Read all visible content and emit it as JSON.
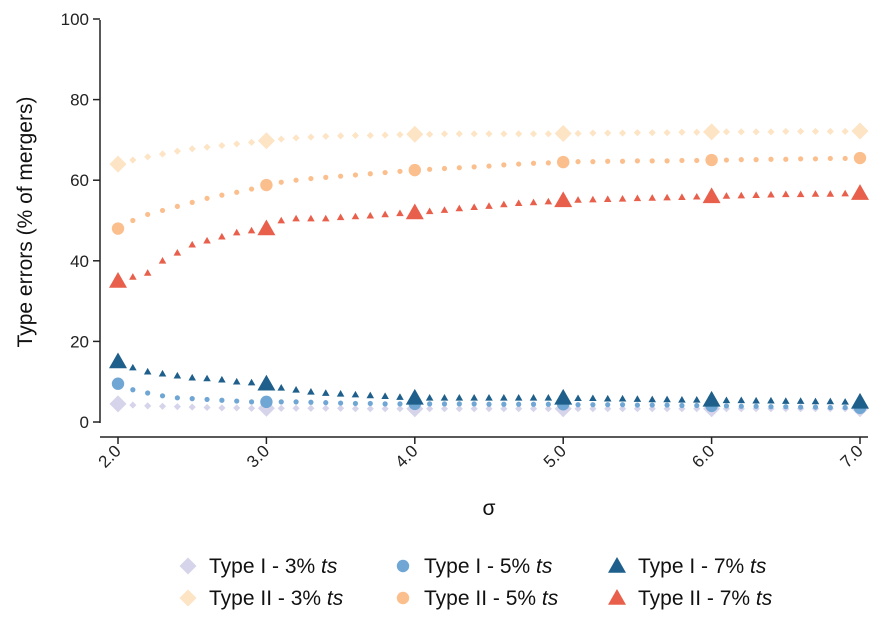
{
  "chart_data": {
    "type": "line",
    "xlabel": "σ",
    "ylabel": "Type errors (% of mergers)",
    "xlim": [
      2.0,
      7.0
    ],
    "ylim": [
      0,
      100
    ],
    "x_ticks": [
      2.0,
      3.0,
      4.0,
      5.0,
      6.0,
      7.0
    ],
    "x_tick_labels": [
      "2.0",
      "3.0",
      "4.0",
      "5.0",
      "6.0",
      "7.0"
    ],
    "y_ticks": [
      0,
      20,
      40,
      60,
      80,
      100
    ],
    "y_tick_labels": [
      "0",
      "20",
      "40",
      "60",
      "80",
      "100"
    ],
    "grid": false,
    "legend_position": "bottom",
    "series": [
      {
        "name": "Type I - 3% ts",
        "label_main": "Type I  - 3% ",
        "label_italic": "ts",
        "marker": "diamond",
        "color": "#d6d4ea",
        "x": [
          2.0,
          2.1,
          2.2,
          2.3,
          2.4,
          2.5,
          2.6,
          2.7,
          2.8,
          2.9,
          3.0,
          3.1,
          3.2,
          3.3,
          3.4,
          3.5,
          3.6,
          3.7,
          3.8,
          3.9,
          4.0,
          4.1,
          4.2,
          4.3,
          4.4,
          4.5,
          4.6,
          4.7,
          4.8,
          4.9,
          5.0,
          5.1,
          5.2,
          5.3,
          5.4,
          5.5,
          5.6,
          5.7,
          5.8,
          5.9,
          6.0,
          6.1,
          6.2,
          6.3,
          6.4,
          6.5,
          6.6,
          6.7,
          6.8,
          6.9,
          7.0
        ],
        "y": [
          4.5,
          4.2,
          4.0,
          3.9,
          3.8,
          3.7,
          3.6,
          3.5,
          3.5,
          3.4,
          3.4,
          3.4,
          3.4,
          3.4,
          3.4,
          3.4,
          3.3,
          3.3,
          3.3,
          3.3,
          3.3,
          3.3,
          3.3,
          3.3,
          3.3,
          3.3,
          3.3,
          3.3,
          3.3,
          3.3,
          3.3,
          3.3,
          3.3,
          3.3,
          3.3,
          3.3,
          3.3,
          3.3,
          3.3,
          3.3,
          3.3,
          3.3,
          3.3,
          3.3,
          3.3,
          3.3,
          3.3,
          3.3,
          3.3,
          3.3,
          3.3
        ]
      },
      {
        "name": "Type I - 5% ts",
        "label_main": "Type I  - 5% ",
        "label_italic": "ts",
        "marker": "circle",
        "color": "#6fa6d4",
        "x": [
          2.0,
          2.1,
          2.2,
          2.3,
          2.4,
          2.5,
          2.6,
          2.7,
          2.8,
          2.9,
          3.0,
          3.1,
          3.2,
          3.3,
          3.4,
          3.5,
          3.6,
          3.7,
          3.8,
          3.9,
          4.0,
          4.1,
          4.2,
          4.3,
          4.4,
          4.5,
          4.6,
          4.7,
          4.8,
          4.9,
          5.0,
          5.1,
          5.2,
          5.3,
          5.4,
          5.5,
          5.6,
          5.7,
          5.8,
          5.9,
          6.0,
          6.1,
          6.2,
          6.3,
          6.4,
          6.5,
          6.6,
          6.7,
          6.8,
          6.9,
          7.0
        ],
        "y": [
          9.5,
          8.0,
          7.2,
          6.5,
          6.0,
          5.8,
          5.6,
          5.4,
          5.2,
          5.0,
          5.0,
          5.0,
          5.0,
          4.9,
          4.8,
          4.7,
          4.6,
          4.6,
          4.5,
          4.5,
          4.5,
          4.5,
          4.5,
          4.5,
          4.5,
          4.4,
          4.4,
          4.4,
          4.4,
          4.4,
          4.4,
          4.3,
          4.3,
          4.3,
          4.3,
          4.2,
          4.2,
          4.2,
          4.1,
          4.1,
          4.0,
          4.0,
          3.9,
          3.9,
          3.8,
          3.8,
          3.7,
          3.7,
          3.6,
          3.6,
          3.5
        ]
      },
      {
        "name": "Type I - 7% ts",
        "label_main": "Type I  - 7% ",
        "label_italic": "ts",
        "marker": "triangle",
        "color": "#1f5f8b",
        "x": [
          2.0,
          2.1,
          2.2,
          2.3,
          2.4,
          2.5,
          2.6,
          2.7,
          2.8,
          2.9,
          3.0,
          3.1,
          3.2,
          3.3,
          3.4,
          3.5,
          3.6,
          3.7,
          3.8,
          3.9,
          4.0,
          4.1,
          4.2,
          4.3,
          4.4,
          4.5,
          4.6,
          4.7,
          4.8,
          4.9,
          5.0,
          5.1,
          5.2,
          5.3,
          5.4,
          5.5,
          5.6,
          5.7,
          5.8,
          5.9,
          6.0,
          6.1,
          6.2,
          6.3,
          6.4,
          6.5,
          6.6,
          6.7,
          6.8,
          6.9,
          7.0
        ],
        "y": [
          15.0,
          13.5,
          12.5,
          12.0,
          11.5,
          11.0,
          10.8,
          10.5,
          10.0,
          9.8,
          9.5,
          8.5,
          8.0,
          7.5,
          7.2,
          7.0,
          6.8,
          6.6,
          6.4,
          6.2,
          6.0,
          6.0,
          6.0,
          6.0,
          6.0,
          6.0,
          6.0,
          6.0,
          6.0,
          6.0,
          6.0,
          5.9,
          5.9,
          5.8,
          5.8,
          5.7,
          5.6,
          5.6,
          5.5,
          5.5,
          5.5,
          5.4,
          5.4,
          5.3,
          5.3,
          5.2,
          5.2,
          5.1,
          5.1,
          5.0,
          5.0
        ]
      },
      {
        "name": "Type II - 3% ts",
        "label_main": "Type II - 3% ",
        "label_italic": "ts",
        "marker": "diamond",
        "color": "#fde4c4",
        "x": [
          2.0,
          2.1,
          2.2,
          2.3,
          2.4,
          2.5,
          2.6,
          2.7,
          2.8,
          2.9,
          3.0,
          3.1,
          3.2,
          3.3,
          3.4,
          3.5,
          3.6,
          3.7,
          3.8,
          3.9,
          4.0,
          4.1,
          4.2,
          4.3,
          4.4,
          4.5,
          4.6,
          4.7,
          4.8,
          4.9,
          5.0,
          5.1,
          5.2,
          5.3,
          5.4,
          5.5,
          5.6,
          5.7,
          5.8,
          5.9,
          6.0,
          6.1,
          6.2,
          6.3,
          6.4,
          6.5,
          6.6,
          6.7,
          6.8,
          6.9,
          7.0
        ],
        "y": [
          64.0,
          65.0,
          65.8,
          66.5,
          67.2,
          67.8,
          68.2,
          68.6,
          69.0,
          69.4,
          69.8,
          70.2,
          70.5,
          70.7,
          70.9,
          71.0,
          71.1,
          71.1,
          71.2,
          71.3,
          71.4,
          71.4,
          71.5,
          71.5,
          71.5,
          71.5,
          71.5,
          71.5,
          71.5,
          71.5,
          71.6,
          71.6,
          71.7,
          71.7,
          71.7,
          71.8,
          71.8,
          71.8,
          71.9,
          71.9,
          72.0,
          72.0,
          72.0,
          72.0,
          72.0,
          72.1,
          72.1,
          72.1,
          72.1,
          72.1,
          72.2
        ]
      },
      {
        "name": "Type II - 5% ts",
        "label_main": "Type II - 5% ",
        "label_italic": "ts",
        "marker": "circle",
        "color": "#fbbf8e",
        "x": [
          2.0,
          2.1,
          2.2,
          2.3,
          2.4,
          2.5,
          2.6,
          2.7,
          2.8,
          2.9,
          3.0,
          3.1,
          3.2,
          3.3,
          3.4,
          3.5,
          3.6,
          3.7,
          3.8,
          3.9,
          4.0,
          4.1,
          4.2,
          4.3,
          4.4,
          4.5,
          4.6,
          4.7,
          4.8,
          4.9,
          5.0,
          5.1,
          5.2,
          5.3,
          5.4,
          5.5,
          5.6,
          5.7,
          5.8,
          5.9,
          6.0,
          6.1,
          6.2,
          6.3,
          6.4,
          6.5,
          6.6,
          6.7,
          6.8,
          6.9,
          7.0
        ],
        "y": [
          48.0,
          50.0,
          51.5,
          52.5,
          53.5,
          54.5,
          55.5,
          56.3,
          57.0,
          57.8,
          58.8,
          59.5,
          60.0,
          60.4,
          60.7,
          61.0,
          61.3,
          61.6,
          61.9,
          62.2,
          62.5,
          62.7,
          62.9,
          63.1,
          63.3,
          63.5,
          63.8,
          64.0,
          64.2,
          64.3,
          64.5,
          64.6,
          64.6,
          64.7,
          64.7,
          64.8,
          64.8,
          64.8,
          64.9,
          64.9,
          65.0,
          65.0,
          65.1,
          65.1,
          65.2,
          65.2,
          65.3,
          65.3,
          65.4,
          65.4,
          65.5
        ]
      },
      {
        "name": "Type II - 7% ts",
        "label_main": "Type II - 7% ",
        "label_italic": "ts",
        "marker": "triangle",
        "color": "#e8604c",
        "x": [
          2.0,
          2.1,
          2.2,
          2.3,
          2.4,
          2.5,
          2.6,
          2.7,
          2.8,
          2.9,
          3.0,
          3.1,
          3.2,
          3.3,
          3.4,
          3.5,
          3.6,
          3.7,
          3.8,
          3.9,
          4.0,
          4.1,
          4.2,
          4.3,
          4.4,
          4.5,
          4.6,
          4.7,
          4.8,
          4.9,
          5.0,
          5.1,
          5.2,
          5.3,
          5.4,
          5.5,
          5.6,
          5.7,
          5.8,
          5.9,
          6.0,
          6.1,
          6.2,
          6.3,
          6.4,
          6.5,
          6.6,
          6.7,
          6.8,
          6.9,
          7.0
        ],
        "y": [
          35.0,
          36.0,
          37.0,
          40.0,
          42.0,
          44.0,
          45.0,
          46.0,
          47.0,
          47.5,
          48.0,
          50.0,
          50.5,
          50.5,
          50.5,
          50.8,
          51.0,
          51.2,
          51.5,
          51.8,
          52.0,
          52.3,
          52.6,
          53.0,
          53.3,
          53.6,
          54.0,
          54.3,
          54.5,
          54.7,
          55.0,
          55.1,
          55.2,
          55.3,
          55.4,
          55.5,
          55.6,
          55.7,
          55.8,
          55.9,
          56.0,
          56.1,
          56.2,
          56.3,
          56.4,
          56.5,
          56.5,
          56.6,
          56.6,
          56.7,
          56.8
        ]
      }
    ]
  }
}
